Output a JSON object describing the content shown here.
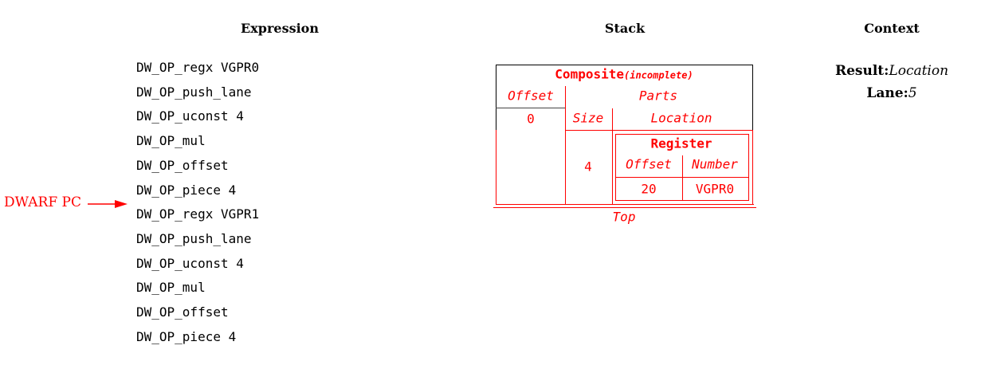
{
  "headers": {
    "expression": "Expression",
    "stack": "Stack",
    "context": "Context"
  },
  "pc_label": "DWARF PC",
  "pc_index": 6,
  "expression": [
    "DW_OP_regx VGPR0",
    "DW_OP_push_lane",
    "DW_OP_uconst 4",
    "DW_OP_mul",
    "DW_OP_offset",
    "DW_OP_piece 4",
    "DW_OP_regx VGPR1",
    "DW_OP_push_lane",
    "DW_OP_uconst 4",
    "DW_OP_mul",
    "DW_OP_offset",
    "DW_OP_piece 4"
  ],
  "stack": {
    "composite_title": "Composite",
    "composite_note": "(incomplete)",
    "offset_label": "Offset",
    "offset_value": "0",
    "parts_label": "Parts",
    "size_label": "Size",
    "location_label": "Location",
    "size_value": "4",
    "register": {
      "title": "Register",
      "offset_label": "Offset",
      "number_label": "Number",
      "offset_value": "20",
      "number_value": "VGPR0"
    },
    "top_label": "Top"
  },
  "context": {
    "result_label": "Result:",
    "result_value": "Location",
    "lane_label": "Lane:",
    "lane_value": "5"
  },
  "colors": {
    "highlight": "#ff0000",
    "text": "#000000"
  }
}
